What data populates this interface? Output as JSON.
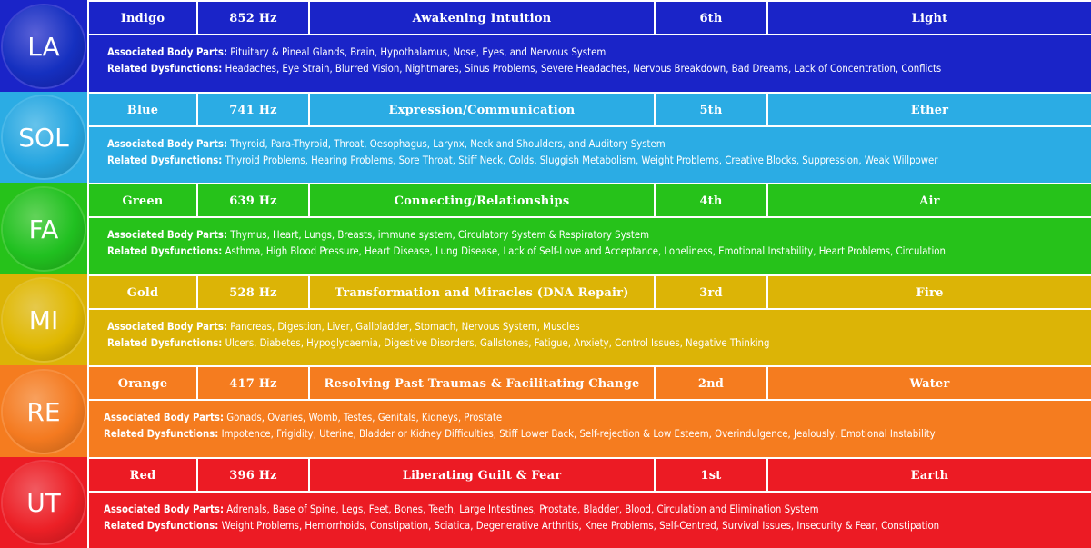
{
  "rows": [
    {
      "note": "LA",
      "color": "Indigo",
      "frequency": "852 Hz",
      "purpose": "Awakening Intuition",
      "chakra": "6th",
      "element": "Light",
      "body_label": "Associated Body Parts:",
      "body": "Pituitary & Pineal Glands, Brain, Hypothalamus, Nose, Eyes, and Nervous System",
      "dys_label": "Related Dysfunctions:",
      "dys": "Headaches, Eye Strain, Blurred Vision, Nightmares, Sinus Problems, Severe Headaches, Nervous Breakdown, Bad Dreams, Lack of Concentration, Conflicts",
      "bg": "#1a24c8",
      "circle": "#1530c0"
    },
    {
      "note": "SOL",
      "color": "Blue",
      "frequency": "741 Hz",
      "purpose": "Expression/Communication",
      "chakra": "5th",
      "element": "Ether",
      "body_label": "Associated Body Parts:",
      "body": "Thyroid, Para-Thyroid, Throat, Oesophagus, Larynx, Neck and Shoulders, and Auditory System",
      "dys_label": "Related Dysfunctions:",
      "dys": "Thyroid Problems, Hearing Problems, Sore Throat, Stiff Neck, Colds, Sluggish Metabolism, Weight Problems, Creative Blocks, Suppression, Weak Willpower",
      "bg": "#2bace4",
      "circle": "#25a5e0"
    },
    {
      "note": "FA",
      "color": "Green",
      "frequency": "639 Hz",
      "purpose": "Connecting/Relationships",
      "chakra": "4th",
      "element": "Air",
      "body_label": "Associated Body Parts:",
      "body": "Thymus, Heart, Lungs, Breasts, immune system, Circulatory System & Respiratory System",
      "dys_label": "Related Dysfunctions:",
      "dys": "Asthma, High Blood Pressure, Heart Disease, Lung Disease, Lack of Self-Love and Acceptance, Loneliness, Emotional Instability, Heart Problems, Circulation",
      "bg": "#26c21a",
      "circle": "#20c020"
    },
    {
      "note": "MI",
      "color": "Gold",
      "frequency": "528 Hz",
      "purpose": "Transformation and Miracles (DNA Repair)",
      "chakra": "3rd",
      "element": "Fire",
      "body_label": "Associated Body Parts:",
      "body": "Pancreas, Digestion, Liver, Gallbladder, Stomach, Nervous System, Muscles",
      "dys_label": "Related Dysfunctions:",
      "dys": "Ulcers, Diabetes, Hypoglycaemia, Digestive Disorders, Gallstones, Fatigue, Anxiety, Control Issues, Negative Thinking",
      "bg": "#dcb406",
      "circle": "#e0b800"
    },
    {
      "note": "RE",
      "color": "Orange",
      "frequency": "417 Hz",
      "purpose": "Resolving Past Traumas & Facilitating Change",
      "chakra": "2nd",
      "element": "Water",
      "body_label": "Associated Body Parts:",
      "body": "Gonads, Ovaries, Womb, Testes, Genitals, Kidneys, Prostate",
      "dys_label": "Related Dysfunctions:",
      "dys": "Impotence, Frigidity, Uterine, Bladder or Kidney Difficulties, Stiff Lower Back, Self-rejection & Low Esteem, Overindulgence,  Jealously, Emotional Instability",
      "bg": "#f57c1f",
      "circle": "#f47a20"
    },
    {
      "note": "UT",
      "color": "Red",
      "frequency": "396 Hz",
      "purpose": "Liberating Guilt & Fear",
      "chakra": "1st",
      "element": "Earth",
      "body_label": "Associated Body Parts:",
      "body": "Adrenals, Base of Spine, Legs, Feet, Bones, Teeth, Large Intestines, Prostate, Bladder, Blood, Circulation and Elimination System",
      "dys_label": "Related Dysfunctions:",
      "dys": "Weight Problems, Hemorrhoids, Constipation, Sciatica, Degenerative Arthritis, Knee Problems, Self-Centred, Survival Issues, Insecurity & Fear, Constipation",
      "bg": "#ec1b24",
      "circle": "#ec2026"
    }
  ]
}
